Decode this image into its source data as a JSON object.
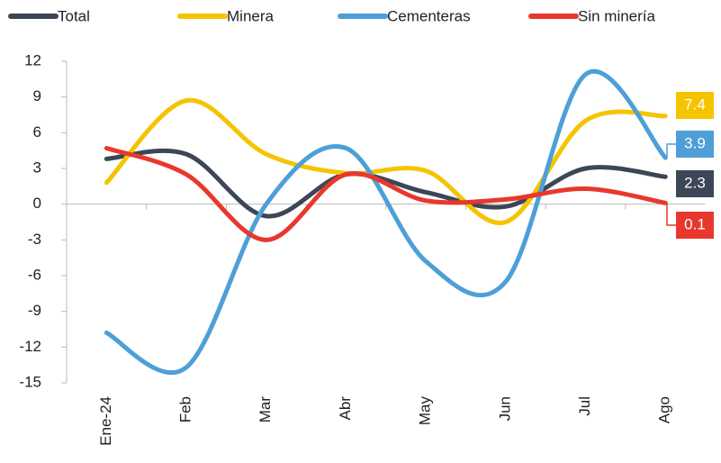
{
  "chart_data": {
    "type": "line",
    "categories": [
      "Ene-24",
      "Feb",
      "Mar",
      "Abr",
      "May",
      "Jun",
      "Jul",
      "Ago"
    ],
    "series": [
      {
        "name": "Total",
        "color": "#3d4656",
        "values": [
          3.8,
          4.2,
          -1.0,
          2.5,
          1.0,
          -0.2,
          3.0,
          2.3
        ]
      },
      {
        "name": "Minera",
        "color": "#f5c400",
        "values": [
          1.8,
          8.7,
          4.2,
          2.6,
          2.8,
          -1.5,
          7.0,
          7.4
        ]
      },
      {
        "name": "Cementeras",
        "color": "#4e9fd8",
        "values": [
          -10.8,
          -13.7,
          0.0,
          4.7,
          -4.8,
          -6.5,
          10.9,
          3.9
        ]
      },
      {
        "name": "Sin minería",
        "color": "#e8382e",
        "values": [
          4.7,
          2.5,
          -3.0,
          2.5,
          0.3,
          0.4,
          1.3,
          0.1
        ]
      }
    ],
    "ylim": [
      -15,
      12
    ],
    "yticks": [
      -15,
      -12,
      -9,
      -6,
      -3,
      0,
      3,
      6,
      9,
      12
    ],
    "legend": "top"
  }
}
